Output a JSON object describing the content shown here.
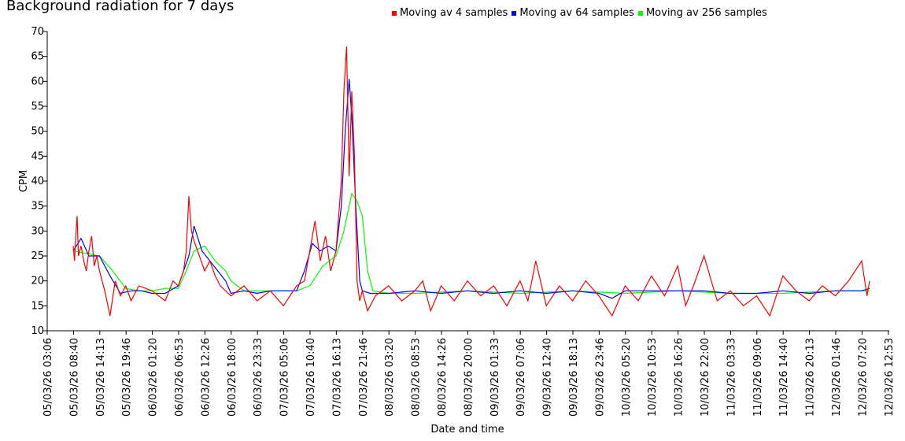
{
  "chart_data": {
    "type": "line",
    "title": "Background radiation for 7 days",
    "xlabel": "Date and time",
    "ylabel": "CPM",
    "ylim": [
      10,
      70
    ],
    "y_ticks": [
      10,
      15,
      20,
      25,
      30,
      35,
      40,
      45,
      50,
      55,
      60,
      65,
      70
    ],
    "x_tick_labels": [
      "05/03/26 03:06",
      "05/03/26 08:40",
      "05/03/26 14:13",
      "05/03/26 19:46",
      "06/03/26 01:20",
      "06/03/26 06:53",
      "06/03/26 12:26",
      "06/03/26 18:00",
      "06/03/26 23:33",
      "07/03/26 05:06",
      "07/03/26 10:40",
      "07/03/26 16:13",
      "07/03/26 21:46",
      "08/03/26 03:20",
      "08/03/26 08:53",
      "08/03/26 14:26",
      "08/03/26 20:00",
      "09/03/26 01:33",
      "09/03/26 07:06",
      "09/03/26 12:40",
      "09/03/26 18:13",
      "09/03/26 23:46",
      "10/03/26 05:20",
      "10/03/26 10:53",
      "10/03/26 16:26",
      "10/03/26 22:00",
      "11/03/26 03:33",
      "11/03/26 09:06",
      "11/03/26 14:40",
      "11/03/26 20:13",
      "12/03/26 01:46",
      "12/03/26 07:20",
      "12/03/26 12:53"
    ],
    "x_domain": [
      0,
      32
    ],
    "legend_position": "top-center",
    "grid": false,
    "series": [
      {
        "name": "Moving av 4 samples",
        "color": "#ff0000",
        "x": [
          1.0,
          1.05,
          1.1,
          1.15,
          1.2,
          1.3,
          1.4,
          1.5,
          1.6,
          1.7,
          1.8,
          1.9,
          2.0,
          2.2,
          2.4,
          2.6,
          2.8,
          3.0,
          3.2,
          3.5,
          4.0,
          4.5,
          4.8,
          5.0,
          5.2,
          5.3,
          5.4,
          5.5,
          5.6,
          5.8,
          6.0,
          6.2,
          6.4,
          6.6,
          7.0,
          7.5,
          8.0,
          8.5,
          9.0,
          9.5,
          9.8,
          10.0,
          10.2,
          10.4,
          10.6,
          10.8,
          11.0,
          11.2,
          11.3,
          11.4,
          11.5,
          11.6,
          11.7,
          11.8,
          11.9,
          12.0,
          12.2,
          12.5,
          13.0,
          13.5,
          14.0,
          14.3,
          14.6,
          15.0,
          15.5,
          16.0,
          16.5,
          17.0,
          17.5,
          18.0,
          18.3,
          18.6,
          19.0,
          19.5,
          20.0,
          20.5,
          21.0,
          21.5,
          22.0,
          22.5,
          23.0,
          23.5,
          24.0,
          24.3,
          24.6,
          25.0,
          25.5,
          26.0,
          26.5,
          27.0,
          27.5,
          28.0,
          28.5,
          29.0,
          29.5,
          30.0,
          30.5,
          31.0,
          31.2,
          31.3
        ],
        "values": [
          27,
          24,
          29,
          33,
          25,
          27,
          24,
          22,
          26,
          29,
          23,
          25,
          22,
          18,
          13,
          20,
          17,
          19,
          16,
          19,
          18,
          16,
          20,
          19,
          22,
          26,
          37,
          30,
          28,
          25,
          22,
          24,
          21,
          19,
          17,
          19,
          16,
          18,
          15,
          19,
          20,
          26,
          32,
          24,
          29,
          22,
          26,
          40,
          58,
          67,
          41,
          58,
          45,
          20,
          16,
          18,
          14,
          17,
          19,
          16,
          18,
          20,
          14,
          19,
          16,
          20,
          17,
          19,
          15,
          20,
          16,
          24,
          15,
          19,
          16,
          20,
          17,
          13,
          19,
          16,
          21,
          17,
          23,
          15,
          19,
          25,
          16,
          18,
          15,
          17,
          13,
          21,
          18,
          16,
          19,
          17,
          20,
          24,
          17,
          20
        ]
      },
      {
        "name": "Moving av 64 samples",
        "color": "#0000ff",
        "x": [
          1.0,
          1.3,
          1.6,
          2.0,
          2.4,
          2.8,
          3.2,
          3.6,
          4.0,
          4.5,
          5.0,
          5.4,
          5.6,
          5.9,
          6.2,
          6.5,
          6.8,
          7.0,
          7.5,
          8.0,
          8.5,
          9.0,
          9.5,
          9.8,
          10.1,
          10.4,
          10.7,
          11.0,
          11.2,
          11.35,
          11.5,
          11.6,
          11.75,
          11.9,
          12.0,
          12.3,
          13.0,
          14.0,
          15.0,
          16.0,
          17.0,
          18.0,
          19.0,
          20.0,
          21.0,
          21.5,
          22.0,
          23.0,
          24.0,
          25.0,
          26.0,
          27.0,
          28.0,
          29.0,
          30.0,
          31.0,
          31.3
        ],
        "values": [
          26,
          28.5,
          25,
          25,
          21,
          17.5,
          18,
          18,
          17.5,
          17.5,
          19,
          25,
          31,
          26,
          24,
          22,
          20,
          17.5,
          18,
          17.5,
          18,
          18,
          18,
          22,
          27.5,
          26,
          27,
          26,
          35,
          50,
          60.5,
          53,
          35,
          20,
          18,
          17.5,
          17.5,
          18,
          17.5,
          18,
          17.5,
          18,
          17.5,
          18,
          17.5,
          16.5,
          18,
          18,
          18,
          18,
          17.5,
          17.5,
          18,
          17.5,
          18,
          18,
          18.5
        ]
      },
      {
        "name": "Moving av 256 samples",
        "color": "#00ff00",
        "x": [
          1.0,
          1.5,
          2.0,
          2.5,
          3.0,
          3.5,
          4.0,
          4.5,
          5.0,
          5.3,
          5.6,
          6.0,
          6.4,
          6.8,
          7.0,
          7.5,
          8.0,
          8.5,
          9.0,
          9.5,
          10.0,
          10.5,
          11.0,
          11.3,
          11.6,
          11.8,
          12.0,
          12.2,
          12.4,
          13.0,
          14.0,
          16.0,
          18.0,
          20.0,
          22.0,
          24.0,
          26.0,
          28.0,
          30.0,
          31.3
        ],
        "values": [
          26,
          25.5,
          25,
          22,
          18.5,
          18,
          18,
          18.5,
          18.5,
          22,
          26,
          27,
          24,
          22,
          20,
          18,
          18,
          18,
          18,
          18,
          19,
          23,
          25,
          30,
          37.5,
          36,
          33,
          22,
          18,
          17.5,
          17.5,
          18,
          17.5,
          18,
          17.5,
          18,
          17.5,
          17.5,
          18,
          18
        ]
      }
    ]
  }
}
